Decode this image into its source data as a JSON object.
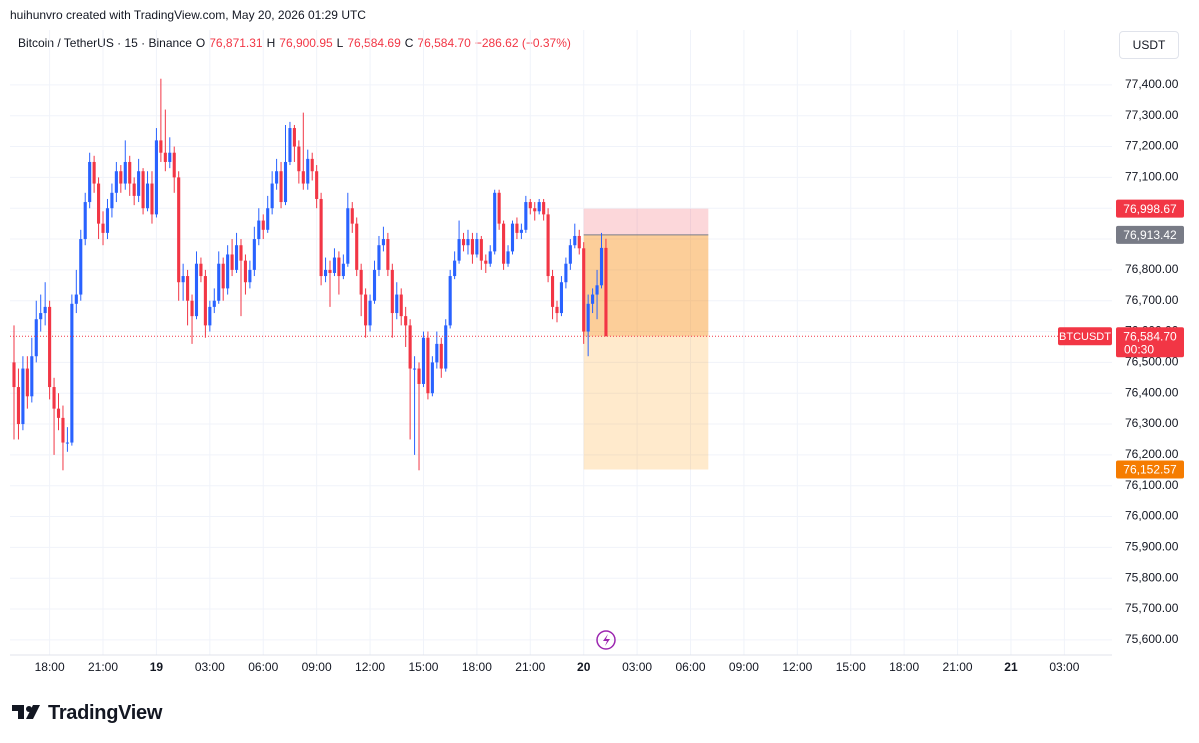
{
  "header": "huihunvro created with TradingView.com, May 20, 2026 01:29 UTC",
  "legend": {
    "symbol": "Bitcoin / TetherUS · 15 · Binance",
    "open_label": "O",
    "open": "76,871.31",
    "high_label": "H",
    "high": "76,900.95",
    "low_label": "L",
    "low": "76,584.69",
    "close_label": "C",
    "close": "76,584.70",
    "change": "−286.62 (−0.37%)"
  },
  "unit": "USDT",
  "brand": "TradingView",
  "chart_data": {
    "type": "candlestick",
    "up_color": "#2962ff",
    "down_color": "#f23645",
    "grid": true,
    "xlim": [
      -0.9,
      246.7
    ],
    "ylim": [
      75551,
      77578
    ],
    "candles": [
      [
        76500,
        76620,
        76250,
        76420
      ],
      [
        76420,
        76480,
        76250,
        76300
      ],
      [
        76300,
        76520,
        76280,
        76480
      ],
      [
        76480,
        76520,
        76350,
        76390
      ],
      [
        76390,
        76580,
        76370,
        76520
      ],
      [
        76520,
        76700,
        76500,
        76640
      ],
      [
        76640,
        76720,
        76600,
        76660
      ],
      [
        76660,
        76760,
        76620,
        76680
      ],
      [
        76680,
        76700,
        76380,
        76420
      ],
      [
        76420,
        76450,
        76200,
        76350
      ],
      [
        76350,
        76400,
        76280,
        76320
      ],
      [
        76320,
        76360,
        76150,
        76240
      ],
      [
        76240,
        76290,
        76210,
        76240
      ],
      [
        76240,
        76720,
        76230,
        76690
      ],
      [
        76690,
        76800,
        76660,
        76720
      ],
      [
        76720,
        76930,
        76700,
        76900
      ],
      [
        76900,
        77050,
        76880,
        77020
      ],
      [
        77020,
        77180,
        77000,
        77150
      ],
      [
        77150,
        77170,
        77050,
        77080
      ],
      [
        77080,
        77100,
        76900,
        76950
      ],
      [
        76950,
        76990,
        76880,
        76920
      ],
      [
        76920,
        77030,
        76900,
        77000
      ],
      [
        77000,
        77080,
        76970,
        77050
      ],
      [
        77050,
        77150,
        77020,
        77120
      ],
      [
        77120,
        77140,
        77050,
        77080
      ],
      [
        77080,
        77220,
        77060,
        77150
      ],
      [
        77150,
        77170,
        77040,
        77080
      ],
      [
        77080,
        77100,
        77010,
        77040
      ],
      [
        77040,
        77160,
        77020,
        77120
      ],
      [
        77120,
        77130,
        76980,
        77000
      ],
      [
        77000,
        77120,
        76990,
        77080
      ],
      [
        77080,
        77120,
        76950,
        76980
      ],
      [
        76980,
        77260,
        76970,
        77220
      ],
      [
        77220,
        77420,
        77150,
        77180
      ],
      [
        77180,
        77320,
        77120,
        77150
      ],
      [
        77150,
        77230,
        77130,
        77180
      ],
      [
        77180,
        77200,
        77050,
        77100
      ],
      [
        77100,
        77120,
        76700,
        76760
      ],
      [
        76760,
        76820,
        76700,
        76780
      ],
      [
        76780,
        76800,
        76620,
        76700
      ],
      [
        76700,
        76720,
        76560,
        76650
      ],
      [
        76650,
        76860,
        76640,
        76820
      ],
      [
        76820,
        76840,
        76760,
        76780
      ],
      [
        76780,
        76800,
        76580,
        76620
      ],
      [
        76620,
        76700,
        76600,
        76680
      ],
      [
        76680,
        76740,
        76660,
        76700
      ],
      [
        76700,
        76860,
        76690,
        76820
      ],
      [
        76820,
        76840,
        76700,
        76740
      ],
      [
        76740,
        76880,
        76720,
        76850
      ],
      [
        76850,
        76900,
        76780,
        76800
      ],
      [
        76800,
        76920,
        76790,
        76880
      ],
      [
        76880,
        76900,
        76650,
        76830
      ],
      [
        76830,
        76850,
        76720,
        76760
      ],
      [
        76760,
        76830,
        76740,
        76800
      ],
      [
        76800,
        76940,
        76780,
        76900
      ],
      [
        76900,
        77000,
        76880,
        76960
      ],
      [
        76960,
        76980,
        76900,
        76930
      ],
      [
        76930,
        77040,
        76920,
        77000
      ],
      [
        77000,
        77120,
        76980,
        77080
      ],
      [
        77080,
        77160,
        77060,
        77120
      ],
      [
        77120,
        77150,
        77000,
        77020
      ],
      [
        77020,
        77270,
        77010,
        77150
      ],
      [
        77150,
        77280,
        77140,
        77260
      ],
      [
        77260,
        77270,
        77150,
        77200
      ],
      [
        77200,
        77220,
        77080,
        77120
      ],
      [
        77120,
        77310,
        77060,
        77080
      ],
      [
        77080,
        77190,
        77060,
        77160
      ],
      [
        77160,
        77180,
        77090,
        77120
      ],
      [
        77120,
        77140,
        77000,
        77030
      ],
      [
        77030,
        77050,
        76750,
        76780
      ],
      [
        76780,
        76840,
        76760,
        76800
      ],
      [
        76800,
        76830,
        76680,
        76790
      ],
      [
        76790,
        76870,
        76780,
        76840
      ],
      [
        76840,
        76860,
        76720,
        76780
      ],
      [
        76780,
        76850,
        76770,
        76820
      ],
      [
        76820,
        77050,
        76810,
        77000
      ],
      [
        77000,
        77020,
        76920,
        76950
      ],
      [
        76950,
        76970,
        76780,
        76800
      ],
      [
        76800,
        76820,
        76650,
        76720
      ],
      [
        76720,
        76740,
        76580,
        76620
      ],
      [
        76620,
        76720,
        76600,
        76700
      ],
      [
        76700,
        76830,
        76690,
        76800
      ],
      [
        76800,
        76910,
        76780,
        76880
      ],
      [
        76880,
        76940,
        76860,
        76900
      ],
      [
        76900,
        76920,
        76780,
        76800
      ],
      [
        76800,
        76820,
        76580,
        76660
      ],
      [
        76660,
        76760,
        76640,
        76720
      ],
      [
        76720,
        76740,
        76620,
        76650
      ],
      [
        76650,
        76680,
        76550,
        76620
      ],
      [
        76620,
        76640,
        76250,
        76480
      ],
      [
        76480,
        76520,
        76200,
        76480
      ],
      [
        76480,
        76500,
        76150,
        76430
      ],
      [
        76430,
        76600,
        76420,
        76580
      ],
      [
        76580,
        76600,
        76380,
        76400
      ],
      [
        76400,
        76520,
        76390,
        76500
      ],
      [
        76500,
        76600,
        76480,
        76560
      ],
      [
        76560,
        76580,
        76450,
        76480
      ],
      [
        76480,
        76640,
        76470,
        76620
      ],
      [
        76620,
        76800,
        76610,
        76780
      ],
      [
        76780,
        76860,
        76770,
        76830
      ],
      [
        76830,
        76960,
        76820,
        76900
      ],
      [
        76900,
        76920,
        76860,
        76880
      ],
      [
        76880,
        76930,
        76850,
        76900
      ],
      [
        76900,
        76920,
        76820,
        76850
      ],
      [
        76850,
        76920,
        76840,
        76900
      ],
      [
        76900,
        76910,
        76800,
        76830
      ],
      [
        76830,
        76850,
        76790,
        76820
      ],
      [
        76820,
        76880,
        76810,
        76860
      ],
      [
        76860,
        77060,
        76850,
        77050
      ],
      [
        77050,
        77060,
        76930,
        76950
      ],
      [
        76950,
        76960,
        76800,
        76820
      ],
      [
        76820,
        76880,
        76810,
        76860
      ],
      [
        76860,
        76960,
        76850,
        76950
      ],
      [
        76950,
        76970,
        76900,
        76920
      ],
      [
        76920,
        76950,
        76900,
        76930
      ],
      [
        76930,
        77040,
        76920,
        77020
      ],
      [
        77020,
        77030,
        76980,
        77000
      ],
      [
        77000,
        77020,
        76960,
        76990
      ],
      [
        76990,
        77030,
        76980,
        77020
      ],
      [
        77020,
        77030,
        76960,
        76980
      ],
      [
        76980,
        77000,
        76760,
        76780
      ],
      [
        76780,
        76800,
        76640,
        76680
      ],
      [
        76680,
        76700,
        76630,
        76660
      ],
      [
        76660,
        76780,
        76650,
        76760
      ],
      [
        76760,
        76840,
        76740,
        76820
      ],
      [
        76820,
        76900,
        76800,
        76880
      ],
      [
        76880,
        76950,
        76870,
        76910
      ],
      [
        76910,
        76930,
        76850,
        76870
      ],
      [
        76870,
        76890,
        76560,
        76600
      ],
      [
        76600,
        76720,
        76520,
        76690
      ],
      [
        76690,
        76740,
        76660,
        76720
      ],
      [
        76720,
        76800,
        76640,
        76750
      ],
      [
        76750,
        76920,
        76740,
        76871.31
      ],
      [
        76871.31,
        76900.95,
        76584.69,
        76584.7
      ]
    ],
    "yticks": [
      {
        "value": 75600,
        "label": "75,600.00"
      },
      {
        "value": 75700,
        "label": "75,700.00"
      },
      {
        "value": 75800,
        "label": "75,800.00"
      },
      {
        "value": 75900,
        "label": "75,900.00"
      },
      {
        "value": 76000,
        "label": "76,000.00"
      },
      {
        "value": 76100,
        "label": "76,100.00"
      },
      {
        "value": 76200,
        "label": "76,200.00"
      },
      {
        "value": 76300,
        "label": "76,300.00"
      },
      {
        "value": 76400,
        "label": "76,400.00"
      },
      {
        "value": 76500,
        "label": "76,500.00"
      },
      {
        "value": 76600,
        "label": "76,600.00"
      },
      {
        "value": 76700,
        "label": "76,700.00"
      },
      {
        "value": 76800,
        "label": "76,800.00"
      },
      {
        "value": 76900,
        "label": "76,900.00"
      },
      {
        "value": 77000,
        "label": "77,000.00"
      },
      {
        "value": 77100,
        "label": "77,100.00"
      },
      {
        "value": 77200,
        "label": "77,200.00"
      },
      {
        "value": 77300,
        "label": "77,300.00"
      },
      {
        "value": 77400,
        "label": "77,400.00"
      }
    ],
    "xticks": [
      {
        "value": 8,
        "label": "18:00"
      },
      {
        "value": 20,
        "label": "21:00"
      },
      {
        "value": 32,
        "label": "19",
        "bold": true
      },
      {
        "value": 44,
        "label": "03:00"
      },
      {
        "value": 56,
        "label": "06:00"
      },
      {
        "value": 68,
        "label": "09:00"
      },
      {
        "value": 80,
        "label": "12:00"
      },
      {
        "value": 92,
        "label": "15:00"
      },
      {
        "value": 104,
        "label": "18:00"
      },
      {
        "value": 116,
        "label": "21:00"
      },
      {
        "value": 128,
        "label": "20",
        "bold": true
      },
      {
        "value": 140,
        "label": "03:00"
      },
      {
        "value": 152,
        "label": "06:00"
      },
      {
        "value": 164,
        "label": "09:00"
      },
      {
        "value": 176,
        "label": "12:00"
      },
      {
        "value": 188,
        "label": "15:00"
      },
      {
        "value": 200,
        "label": "18:00"
      },
      {
        "value": 212,
        "label": "21:00"
      },
      {
        "value": 224,
        "label": "21",
        "bold": true
      },
      {
        "value": 236,
        "label": "03:00"
      }
    ],
    "position": {
      "start": 128,
      "end": 156,
      "stop": {
        "value": 76998.67,
        "label": "76,998.67",
        "color": "#f23645"
      },
      "entry": {
        "value": 76913.42,
        "label": "76,913.42",
        "color": "#787b86"
      },
      "target": {
        "value": 76152.57,
        "label": "76,152.57",
        "color": "#f57c00"
      }
    },
    "last_price": {
      "value": 76584.7,
      "label": "76,584.70",
      "symbol": "BTCUSDT",
      "countdown": "00:30",
      "color": "#f23645"
    }
  }
}
